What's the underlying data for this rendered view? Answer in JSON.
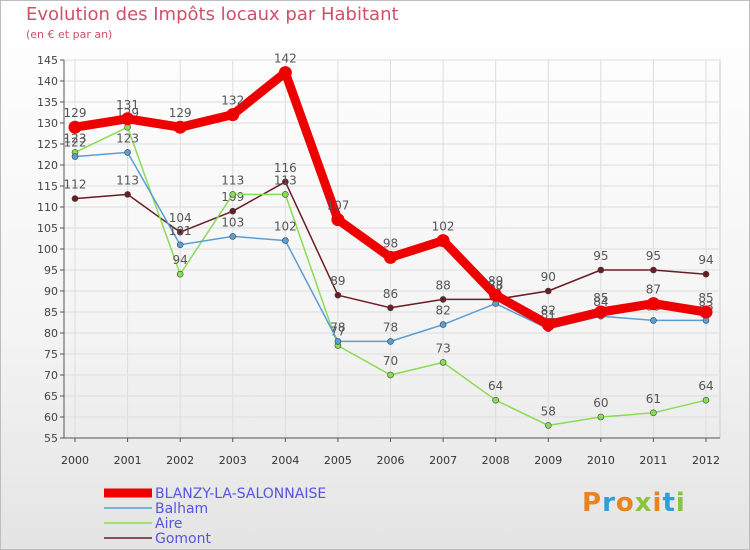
{
  "title": "Evolution des Impôts locaux par Habitant",
  "subtitle": "(en € et par an)",
  "logo": "Proxiti",
  "chart_data": {
    "type": "line",
    "title": "Evolution des Impôts locaux par Habitant",
    "subtitle": "(en € et par an)",
    "xlabel": "",
    "ylabel": "",
    "x": [
      "2000",
      "2001",
      "2002",
      "2003",
      "2004",
      "2005",
      "2006",
      "2007",
      "2008",
      "2009",
      "2010",
      "2011",
      "2012"
    ],
    "ylim": [
      55,
      145
    ],
    "yticks": [
      55,
      60,
      65,
      70,
      75,
      80,
      85,
      90,
      95,
      100,
      105,
      110,
      115,
      120,
      125,
      130,
      135,
      140,
      145
    ],
    "grid": true,
    "legend": "bottom-left",
    "series": [
      {
        "name": "BLANZY-LA-SALONNAISE",
        "color": "#ee0000",
        "values": [
          129,
          131,
          129,
          132,
          142,
          107,
          98,
          102,
          89,
          82,
          85,
          87,
          85
        ]
      },
      {
        "name": "Balham",
        "color": "#5a9fd4",
        "values": [
          122,
          123,
          101,
          103,
          102,
          78,
          78,
          82,
          87,
          81,
          84,
          83,
          83
        ]
      },
      {
        "name": "Aire",
        "color": "#88dd55",
        "values": [
          123,
          129,
          94,
          113,
          113,
          77,
          70,
          73,
          64,
          58,
          60,
          61,
          64
        ]
      },
      {
        "name": "Gomont",
        "color": "#6b1c24",
        "values": [
          112,
          113,
          104,
          109,
          116,
          89,
          86,
          88,
          88,
          90,
          95,
          95,
          94
        ]
      }
    ]
  }
}
